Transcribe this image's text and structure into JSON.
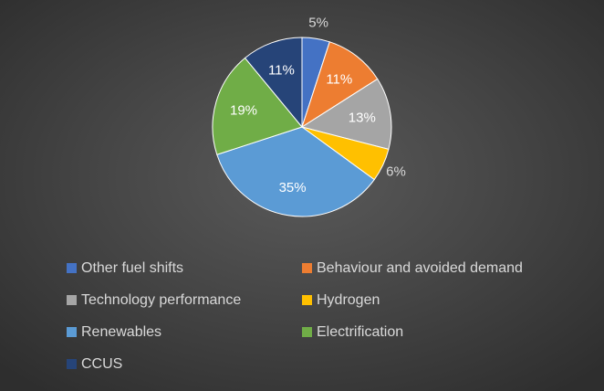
{
  "chart_data": {
    "type": "pie",
    "title": "",
    "slices": [
      {
        "name": "Other fuel shifts",
        "value": 5,
        "label": "5%",
        "color": "#4472c4"
      },
      {
        "name": "Behaviour and avoided demand",
        "value": 11,
        "label": "11%",
        "color": "#ed7d31"
      },
      {
        "name": "Technology performance",
        "value": 13,
        "label": "13%",
        "color": "#a5a5a5"
      },
      {
        "name": "Hydrogen",
        "value": 6,
        "label": "6%",
        "color": "#ffc000"
      },
      {
        "name": "Renewables",
        "value": 35,
        "label": "35%",
        "color": "#5b9bd5"
      },
      {
        "name": "Electrification",
        "value": 19,
        "label": "19%",
        "color": "#70ad47"
      },
      {
        "name": "CCUS",
        "value": 11,
        "label": "11%",
        "color": "#264478"
      }
    ],
    "legend": {
      "placement": "bottom",
      "columns": 2
    },
    "label_colors": {
      "inside": "#ffffff",
      "outside": "#d9d9d9"
    }
  }
}
